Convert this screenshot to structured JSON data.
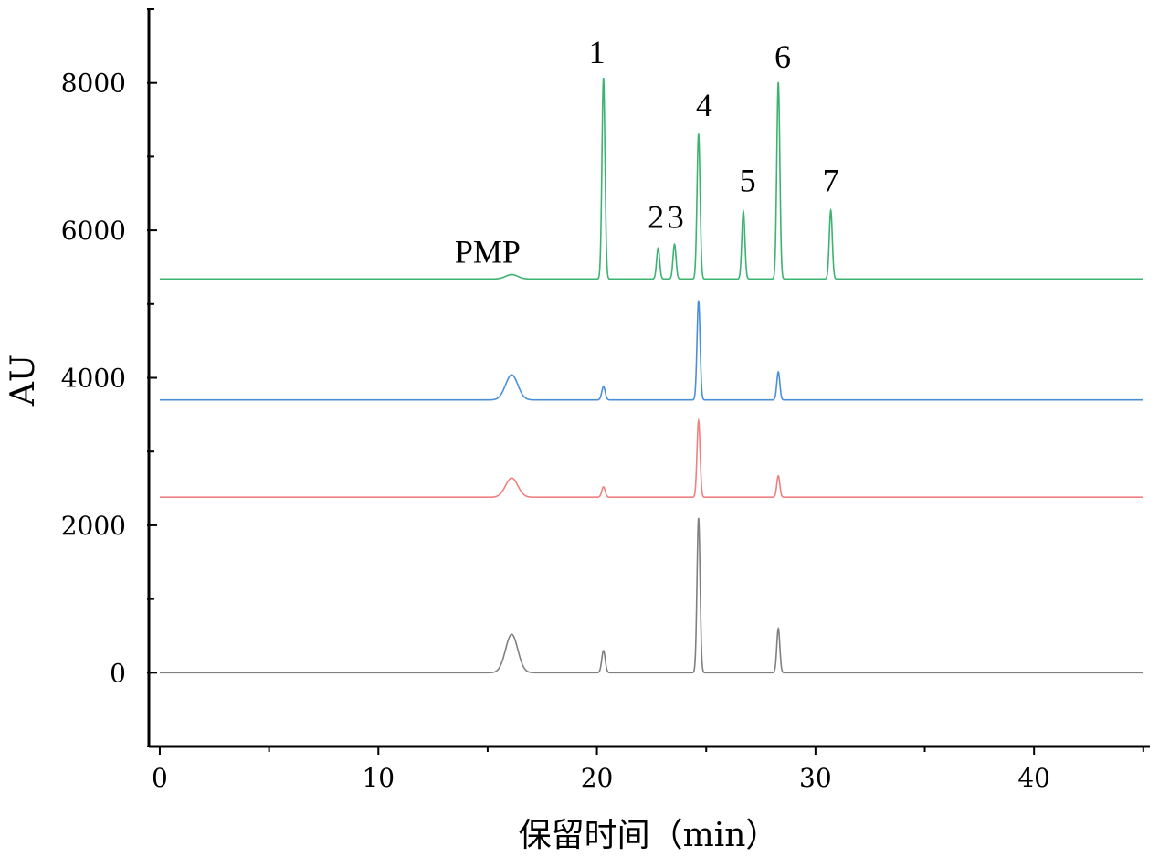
{
  "chart_data": {
    "type": "line",
    "title": "",
    "xlabel": "保留时间（min）",
    "ylabel": "AU",
    "xlim": [
      -0.5,
      45.3
    ],
    "ylim": [
      -1000,
      9000
    ],
    "x_ticks": [
      0,
      10,
      20,
      30,
      40
    ],
    "y_ticks": [
      0,
      2000,
      4000,
      6000,
      8000
    ],
    "x_ticks_labels": [
      "0",
      "10",
      "20",
      "30",
      "40"
    ],
    "y_ticks_labels": [
      "0",
      "2000",
      "4000",
      "6000",
      "8000"
    ],
    "grid": false,
    "legend": "none",
    "x_range": [
      0,
      45
    ],
    "series": [
      {
        "color": "#808080",
        "baseline": 0,
        "peaks": [
          {
            "x": 16.1,
            "height": 520,
            "sigma": 0.28
          },
          {
            "x": 20.3,
            "height": 300,
            "sigma": 0.08
          },
          {
            "x": 24.65,
            "height": 2100,
            "sigma": 0.07
          },
          {
            "x": 28.3,
            "height": 600,
            "sigma": 0.07
          }
        ]
      },
      {
        "color": "#f08080",
        "baseline": 2380,
        "peaks": [
          {
            "x": 16.1,
            "height": 260,
            "sigma": 0.28
          },
          {
            "x": 20.3,
            "height": 140,
            "sigma": 0.08
          },
          {
            "x": 24.65,
            "height": 1040,
            "sigma": 0.07
          },
          {
            "x": 28.3,
            "height": 290,
            "sigma": 0.07
          }
        ]
      },
      {
        "color": "#4a90d9",
        "baseline": 3700,
        "peaks": [
          {
            "x": 16.1,
            "height": 340,
            "sigma": 0.28
          },
          {
            "x": 20.3,
            "height": 180,
            "sigma": 0.08
          },
          {
            "x": 24.65,
            "height": 1350,
            "sigma": 0.07
          },
          {
            "x": 28.3,
            "height": 380,
            "sigma": 0.07
          }
        ]
      },
      {
        "color": "#3cb371",
        "baseline": 5340,
        "peaks": [
          {
            "x": 16.1,
            "height": 60,
            "sigma": 0.28
          },
          {
            "x": 20.3,
            "height": 2730,
            "sigma": 0.07
          },
          {
            "x": 22.8,
            "height": 420,
            "sigma": 0.07
          },
          {
            "x": 23.55,
            "height": 470,
            "sigma": 0.07
          },
          {
            "x": 24.65,
            "height": 1970,
            "sigma": 0.07
          },
          {
            "x": 26.7,
            "height": 920,
            "sigma": 0.07
          },
          {
            "x": 28.3,
            "height": 2670,
            "sigma": 0.07
          },
          {
            "x": 30.7,
            "height": 930,
            "sigma": 0.07
          }
        ]
      }
    ],
    "annotations": [
      {
        "text": "PMP",
        "x": 15.0,
        "y": 5560
      },
      {
        "text": "1",
        "x": 20.0,
        "y": 8270
      },
      {
        "text": "2",
        "x": 22.7,
        "y": 6030
      },
      {
        "text": "3",
        "x": 23.6,
        "y": 6030
      },
      {
        "text": "4",
        "x": 24.9,
        "y": 7550
      },
      {
        "text": "5",
        "x": 26.9,
        "y": 6530
      },
      {
        "text": "6",
        "x": 28.5,
        "y": 8210
      },
      {
        "text": "7",
        "x": 30.7,
        "y": 6530
      }
    ]
  }
}
